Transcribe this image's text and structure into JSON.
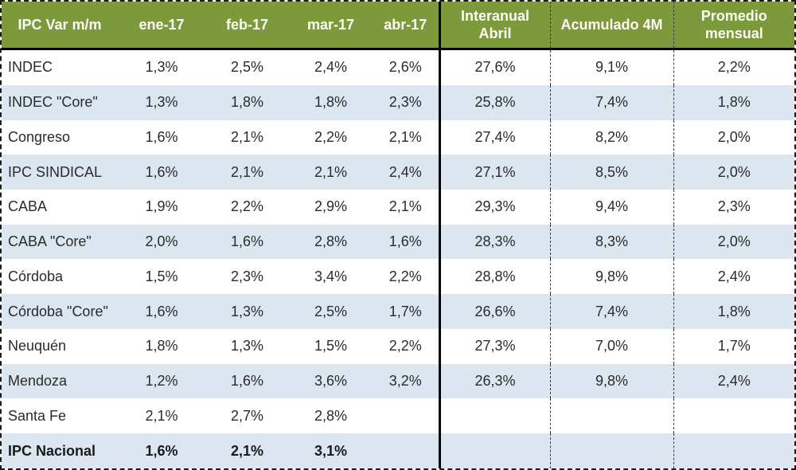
{
  "chart_data": {
    "type": "table",
    "title": "IPC Var m/m",
    "columns": [
      "IPC Var m/m",
      "ene-17",
      "feb-17",
      "mar-17",
      "abr-17",
      "Interanual Abril",
      "Acumulado 4M",
      "Promedio mensual"
    ],
    "rows": [
      {
        "label": "INDEC",
        "bold": false,
        "values": [
          "1,3%",
          "2,5%",
          "2,4%",
          "2,6%",
          "27,6%",
          "9,1%",
          "2,2%"
        ]
      },
      {
        "label": "INDEC \"Core\"",
        "bold": false,
        "values": [
          "1,3%",
          "1,8%",
          "1,8%",
          "2,3%",
          "25,8%",
          "7,4%",
          "1,8%"
        ]
      },
      {
        "label": "Congreso",
        "bold": false,
        "values": [
          "1,6%",
          "2,1%",
          "2,2%",
          "2,1%",
          "27,4%",
          "8,2%",
          "2,0%"
        ]
      },
      {
        "label": "IPC SINDICAL",
        "bold": false,
        "values": [
          "1,6%",
          "2,1%",
          "2,1%",
          "2,4%",
          "27,1%",
          "8,5%",
          "2,0%"
        ]
      },
      {
        "label": "CABA",
        "bold": false,
        "values": [
          "1,9%",
          "2,2%",
          "2,9%",
          "2,1%",
          "29,3%",
          "9,4%",
          "2,3%"
        ]
      },
      {
        "label": "CABA \"Core\"",
        "bold": false,
        "values": [
          "2,0%",
          "1,6%",
          "2,8%",
          "1,6%",
          "28,3%",
          "8,3%",
          "2,0%"
        ]
      },
      {
        "label": "Córdoba",
        "bold": false,
        "values": [
          "1,5%",
          "2,3%",
          "3,4%",
          "2,2%",
          "28,8%",
          "9,8%",
          "2,4%"
        ]
      },
      {
        "label": "Córdoba \"Core\"",
        "bold": false,
        "values": [
          "1,6%",
          "1,3%",
          "2,5%",
          "1,7%",
          "26,6%",
          "7,4%",
          "1,8%"
        ]
      },
      {
        "label": "Neuquén",
        "bold": false,
        "values": [
          "1,8%",
          "1,3%",
          "1,5%",
          "2,2%",
          "27,3%",
          "7,0%",
          "1,7%"
        ]
      },
      {
        "label": "Mendoza",
        "bold": false,
        "values": [
          "1,2%",
          "1,6%",
          "3,6%",
          "3,2%",
          "26,3%",
          "9,8%",
          "2,4%"
        ]
      },
      {
        "label": "Santa Fe",
        "bold": false,
        "values": [
          "2,1%",
          "2,7%",
          "2,8%",
          "",
          "",
          "",
          ""
        ]
      },
      {
        "label": "IPC Nacional",
        "bold": true,
        "values": [
          "1,6%",
          "2,1%",
          "3,1%",
          "",
          "",
          "",
          ""
        ]
      }
    ]
  },
  "colors": {
    "header_bg": "#7C9A3C",
    "header_text": "#FBFCF4",
    "alt_row_bg": "#DCE6F1",
    "row_bg": "#FFFFFF",
    "divider": "#000000",
    "body_text": "#2B2B2B"
  }
}
